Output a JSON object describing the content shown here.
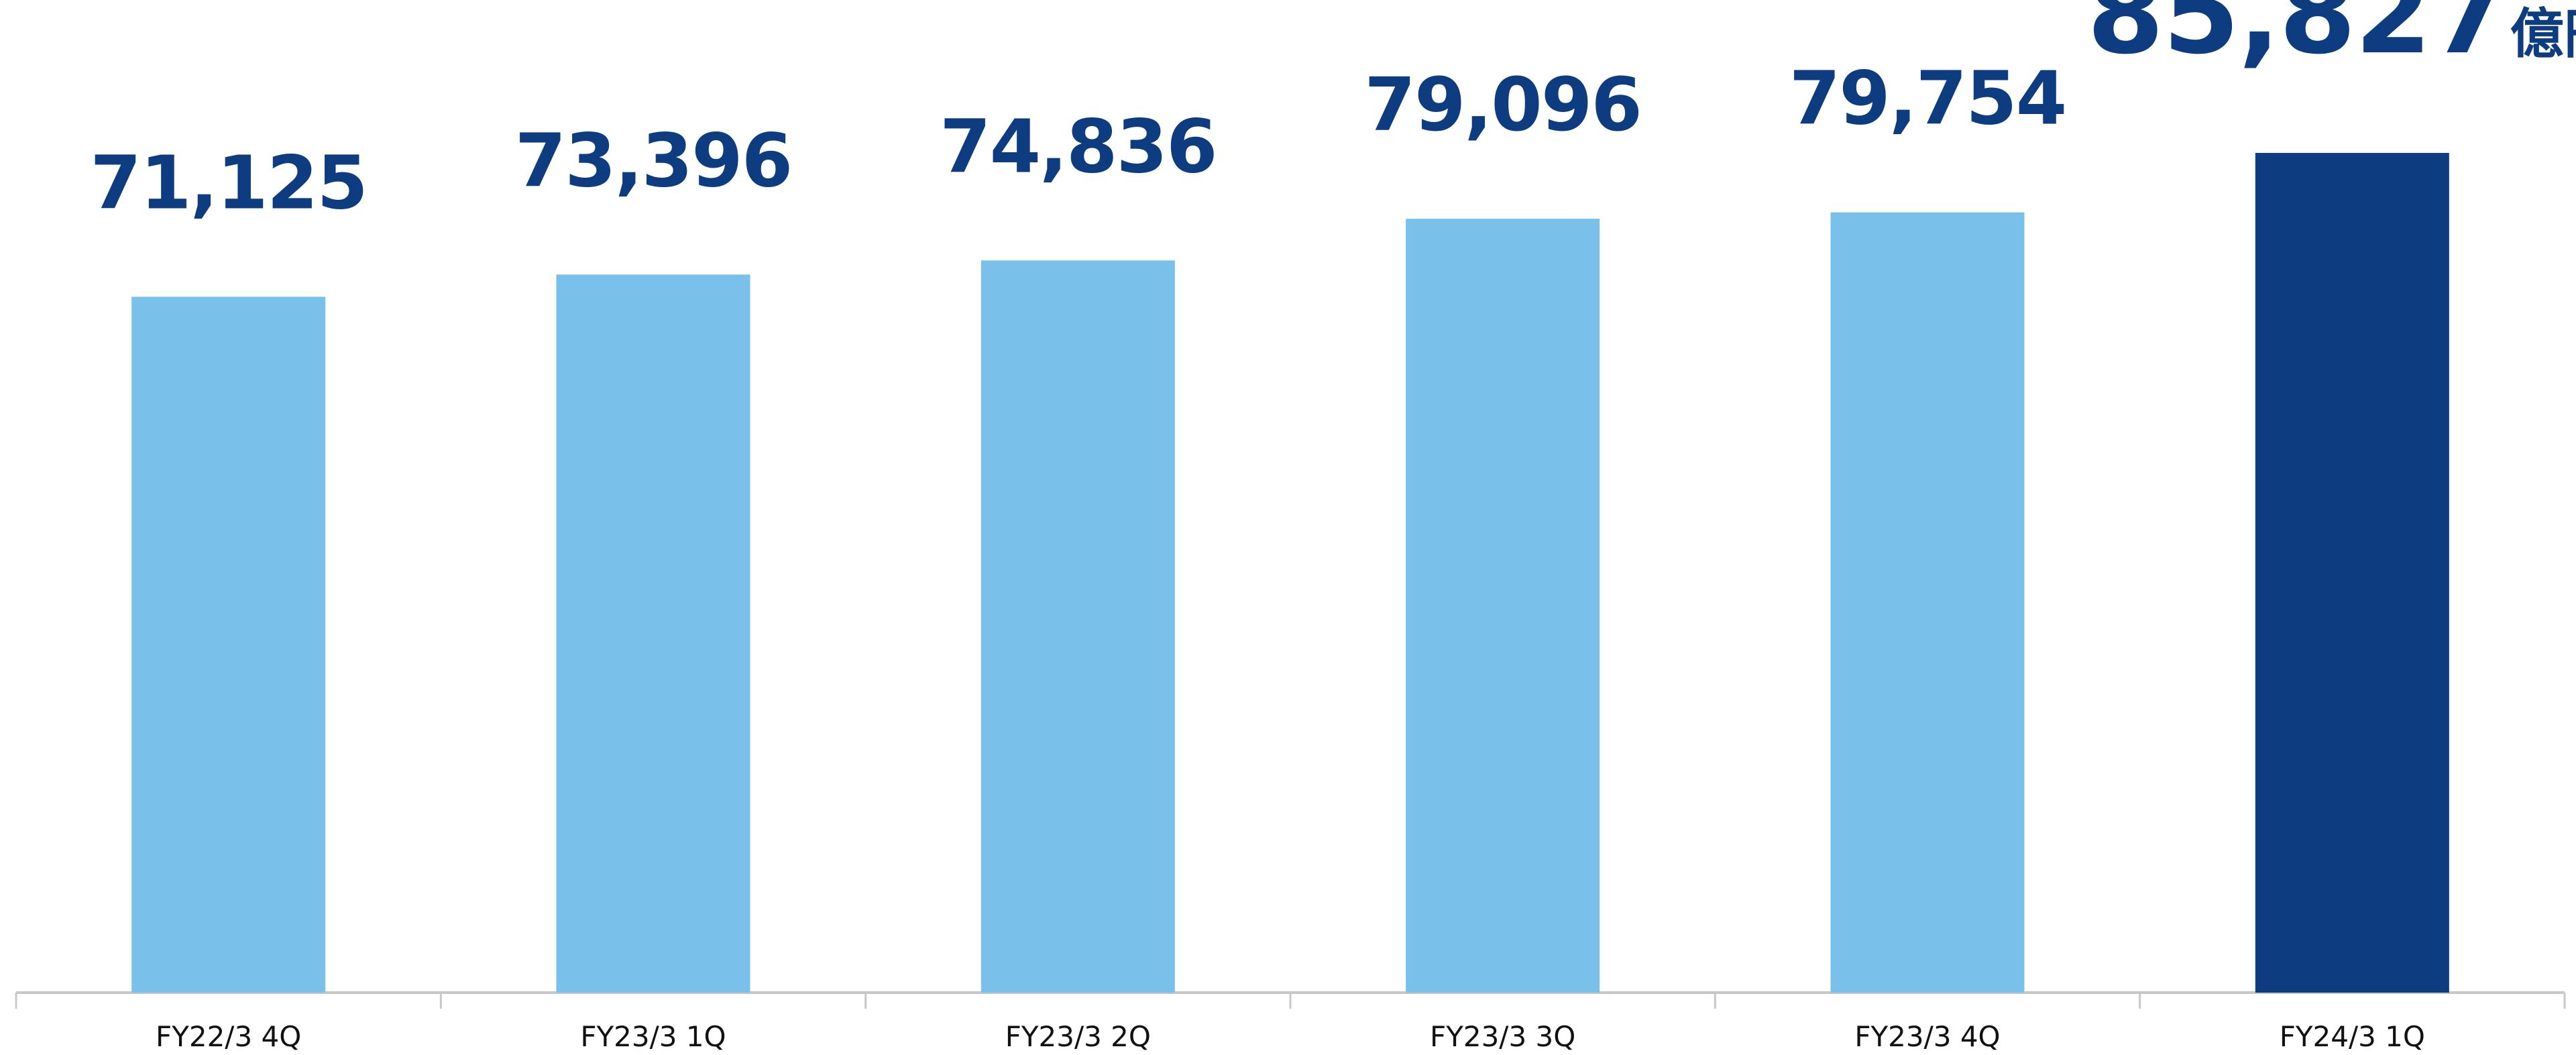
{
  "chart_data": {
    "type": "bar",
    "categories": [
      "FY22/3 4Q",
      "FY23/3 1Q",
      "FY23/3 2Q",
      "FY23/3 3Q",
      "FY23/3 4Q",
      "FY24/3 1Q"
    ],
    "values": [
      71125,
      73396,
      74836,
      79096,
      79754,
      85827
    ],
    "value_labels": [
      "71,125",
      "73,396",
      "74,836",
      "79,096",
      "79,754",
      "85,827"
    ],
    "unit": "億円",
    "colors": [
      "#79c0eb",
      "#79c0eb",
      "#79c0eb",
      "#79c0eb",
      "#79c0eb",
      "#0d3c80"
    ]
  }
}
